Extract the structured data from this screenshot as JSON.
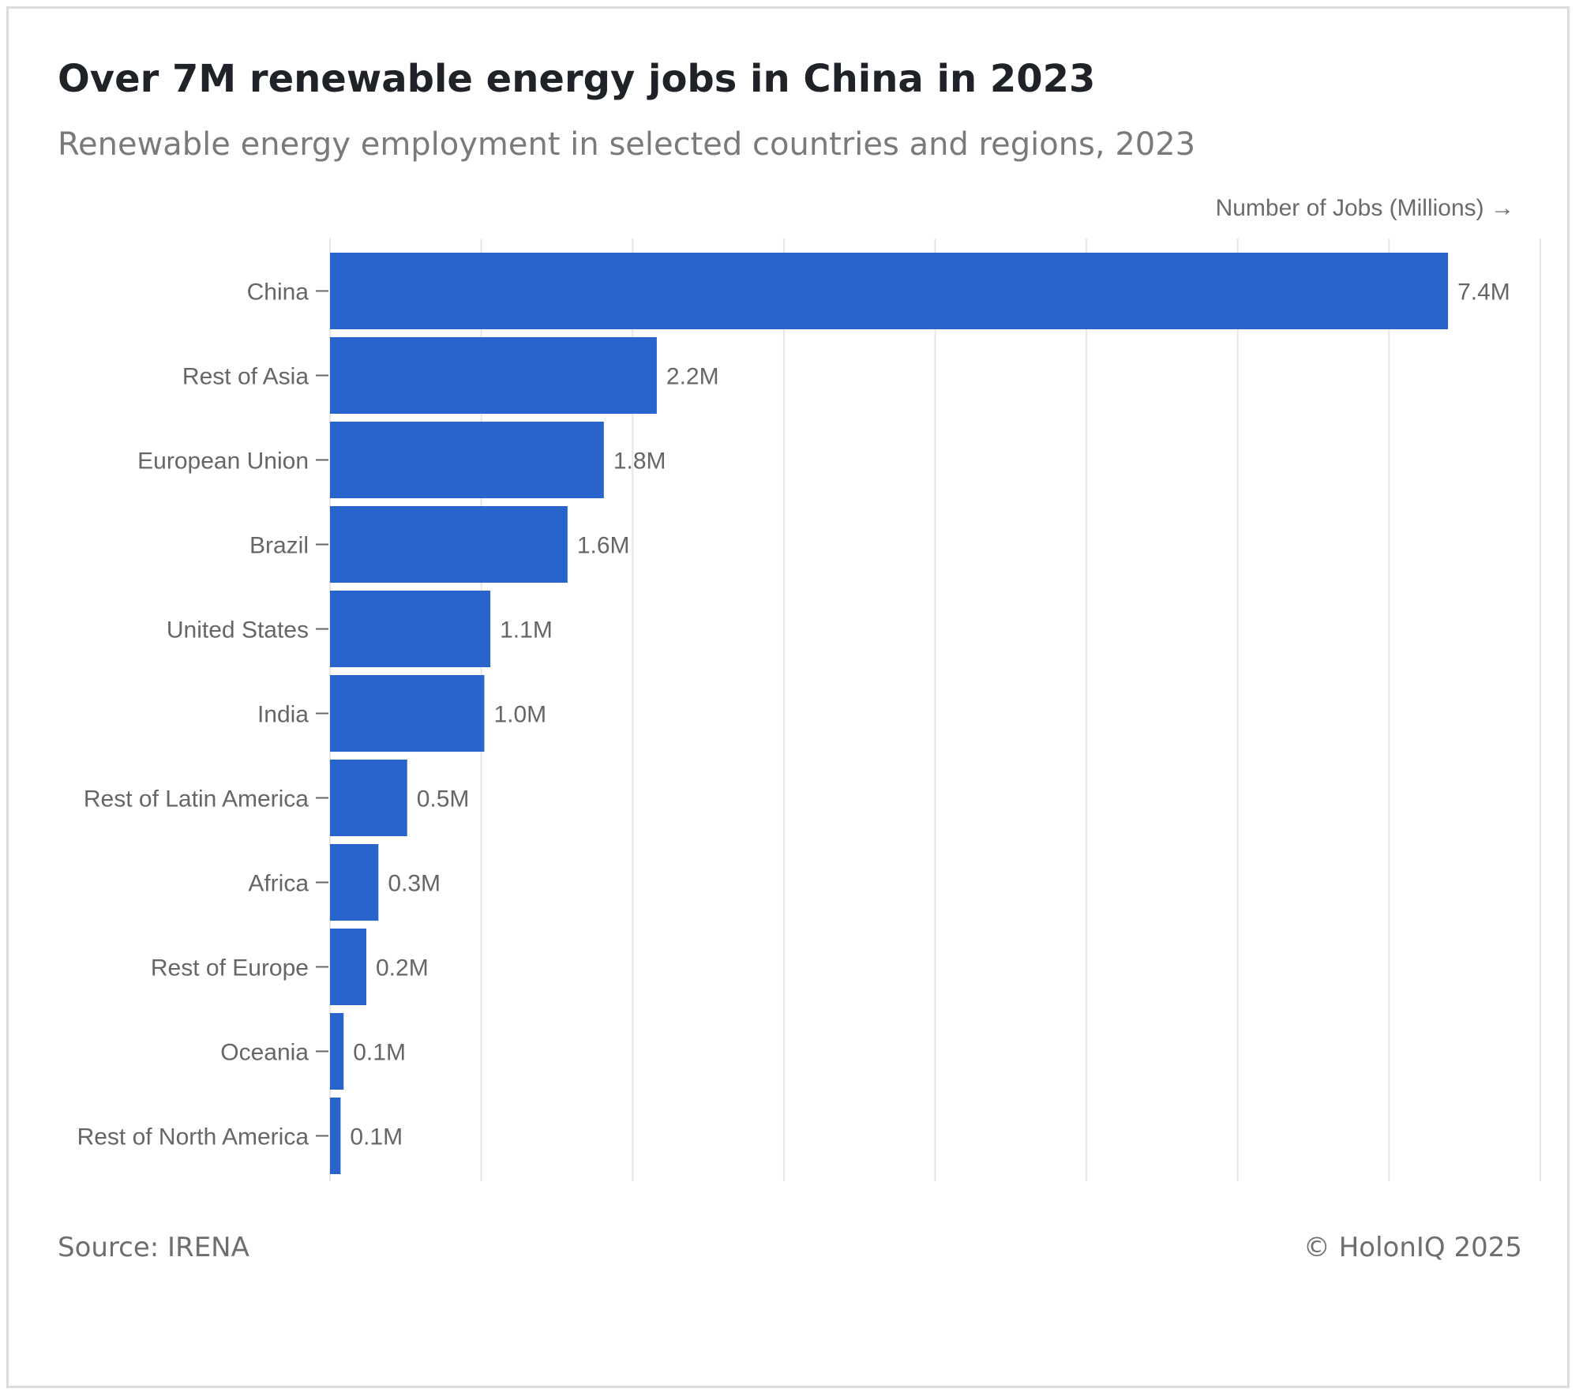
{
  "chart_data": {
    "type": "bar",
    "orientation": "horizontal",
    "title": "Over 7M renewable energy jobs in China in 2023",
    "subtitle": "Renewable energy employment in selected countries and regions, 2023",
    "xlabel": "Number of Jobs (Millions) →",
    "categories": [
      "China",
      "Rest of Asia",
      "European Union",
      "Brazil",
      "United States",
      "India",
      "Rest of Latin America",
      "Africa",
      "Rest of Europe",
      "Oceania",
      "Rest of North America"
    ],
    "values": [
      7.39,
      2.16,
      1.81,
      1.57,
      1.06,
      1.02,
      0.51,
      0.32,
      0.24,
      0.09,
      0.07
    ],
    "value_labels": [
      "7.4M",
      "2.2M",
      "1.8M",
      "1.6M",
      "1.1M",
      "1.0M",
      "0.5M",
      "0.3M",
      "0.2M",
      "0.1M",
      "0.1M"
    ],
    "xlim": [
      0,
      8
    ],
    "grid": true,
    "bar_color": "#2964cc"
  },
  "footer": {
    "source": "Source: IRENA",
    "copyright": "© HolonIQ 2025"
  }
}
